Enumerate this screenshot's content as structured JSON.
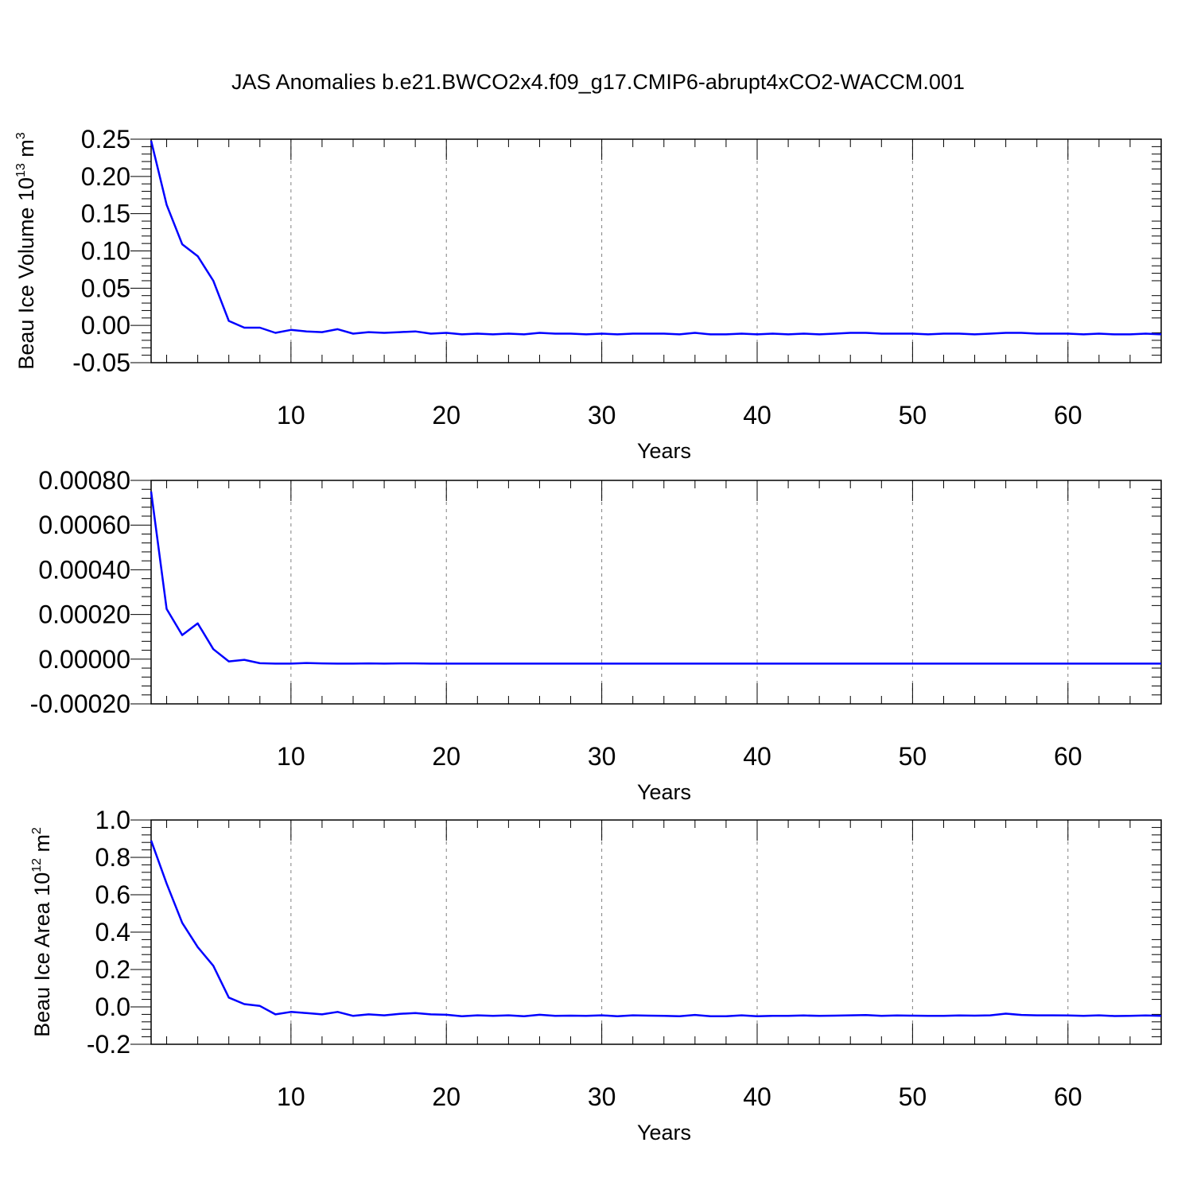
{
  "title": "JAS Anomalies b.e21.BWCO2x4.f09_g17.CMIP6-abrupt4xCO2-WACCM.001",
  "colors": {
    "line": "#0000ff",
    "axis": "#000000",
    "grid": "#808080"
  },
  "chart_data": [
    {
      "type": "line",
      "name": "volume",
      "xlabel": "Years",
      "ylabel_main": "Beau Ice Volume 10",
      "ylabel_sup": "13",
      "ylabel_unit": " m",
      "ylabel_unit_sup": "3",
      "xlim": [
        1,
        66
      ],
      "ylim": [
        -0.05,
        0.25
      ],
      "xticks": [
        10,
        20,
        30,
        40,
        50,
        60
      ],
      "xtick_labels": [
        "10",
        "20",
        "30",
        "40",
        "50",
        "60"
      ],
      "yticks": [
        -0.05,
        0.0,
        0.05,
        0.1,
        0.15,
        0.2,
        0.25
      ],
      "ytick_labels": [
        "-0.05",
        "0.00",
        "0.05",
        "0.10",
        "0.15",
        "0.20",
        "0.25"
      ],
      "grid": "x-dashed",
      "series": [
        {
          "name": "Beau Ice Volume",
          "x": [
            1,
            2,
            3,
            4,
            5,
            6,
            7,
            8,
            9,
            10,
            11,
            12,
            13,
            14,
            15,
            16,
            17,
            18,
            19,
            20,
            21,
            22,
            23,
            24,
            25,
            26,
            27,
            28,
            29,
            30,
            31,
            32,
            33,
            34,
            35,
            36,
            37,
            38,
            39,
            40,
            41,
            42,
            43,
            44,
            45,
            46,
            47,
            48,
            49,
            50,
            51,
            52,
            53,
            54,
            55,
            56,
            57,
            58,
            59,
            60,
            61,
            62,
            63,
            64,
            65,
            66
          ],
          "values": [
            0.248,
            0.162,
            0.109,
            0.093,
            0.06,
            0.006,
            -0.003,
            -0.003,
            -0.01,
            -0.006,
            -0.008,
            -0.009,
            -0.005,
            -0.011,
            -0.009,
            -0.01,
            -0.009,
            -0.008,
            -0.011,
            -0.01,
            -0.012,
            -0.011,
            -0.012,
            -0.011,
            -0.012,
            -0.01,
            -0.011,
            -0.011,
            -0.012,
            -0.011,
            -0.012,
            -0.011,
            -0.011,
            -0.011,
            -0.012,
            -0.01,
            -0.012,
            -0.012,
            -0.011,
            -0.012,
            -0.011,
            -0.012,
            -0.011,
            -0.012,
            -0.011,
            -0.01,
            -0.01,
            -0.011,
            -0.011,
            -0.011,
            -0.012,
            -0.011,
            -0.011,
            -0.012,
            -0.011,
            -0.01,
            -0.01,
            -0.011,
            -0.011,
            -0.011,
            -0.012,
            -0.011,
            -0.012,
            -0.012,
            -0.011,
            -0.012
          ]
        }
      ]
    },
    {
      "type": "line",
      "name": "middle",
      "xlabel": "Years",
      "ylabel_main": "",
      "ylabel_sup": "",
      "ylabel_unit": "",
      "ylabel_unit_sup": "",
      "xlim": [
        1,
        66
      ],
      "ylim": [
        -0.0002,
        0.0008
      ],
      "xticks": [
        10,
        20,
        30,
        40,
        50,
        60
      ],
      "xtick_labels": [
        "10",
        "20",
        "30",
        "40",
        "50",
        "60"
      ],
      "yticks": [
        -0.0002,
        0.0,
        0.0002,
        0.0004,
        0.0006,
        0.0008
      ],
      "ytick_labels": [
        "-0.00020",
        "0.00000",
        "0.00020",
        "0.00040",
        "0.00060",
        "0.00080"
      ],
      "grid": "x-dashed",
      "series": [
        {
          "name": "series",
          "x": [
            1,
            2,
            3,
            4,
            5,
            6,
            7,
            8,
            9,
            10,
            11,
            12,
            13,
            14,
            15,
            16,
            17,
            18,
            19,
            20,
            21,
            22,
            23,
            24,
            25,
            26,
            27,
            28,
            29,
            30,
            31,
            32,
            33,
            34,
            35,
            36,
            37,
            38,
            39,
            40,
            41,
            42,
            43,
            44,
            45,
            46,
            47,
            48,
            49,
            50,
            51,
            52,
            53,
            54,
            55,
            56,
            57,
            58,
            59,
            60,
            61,
            62,
            63,
            64,
            65,
            66
          ],
          "values": [
            0.00075,
            0.000225,
            0.000108,
            0.00016,
            4.5e-05,
            -1e-05,
            -3e-06,
            -1.8e-05,
            -2e-05,
            -2e-05,
            -1.7e-05,
            -1.9e-05,
            -2e-05,
            -2e-05,
            -1.9e-05,
            -2e-05,
            -1.9e-05,
            -1.9e-05,
            -2e-05,
            -2e-05,
            -2e-05,
            -2e-05,
            -2e-05,
            -2e-05,
            -2e-05,
            -2e-05,
            -2e-05,
            -2e-05,
            -2e-05,
            -2e-05,
            -2e-05,
            -2e-05,
            -2e-05,
            -2e-05,
            -2e-05,
            -2e-05,
            -2e-05,
            -2e-05,
            -2e-05,
            -2e-05,
            -2e-05,
            -2e-05,
            -2e-05,
            -2e-05,
            -2e-05,
            -2e-05,
            -2e-05,
            -2e-05,
            -2e-05,
            -2e-05,
            -2e-05,
            -2e-05,
            -2e-05,
            -2e-05,
            -2e-05,
            -2e-05,
            -2e-05,
            -2e-05,
            -2e-05,
            -2e-05,
            -2e-05,
            -2e-05,
            -2e-05,
            -2e-05,
            -2e-05,
            -2e-05
          ]
        }
      ]
    },
    {
      "type": "line",
      "name": "area",
      "xlabel": "Years",
      "ylabel_main": "Beau Ice Area 10",
      "ylabel_sup": "12",
      "ylabel_unit": " m",
      "ylabel_unit_sup": "2",
      "xlim": [
        1,
        66
      ],
      "ylim": [
        -0.2,
        1.0
      ],
      "xticks": [
        10,
        20,
        30,
        40,
        50,
        60
      ],
      "xtick_labels": [
        "10",
        "20",
        "30",
        "40",
        "50",
        "60"
      ],
      "yticks": [
        -0.2,
        0.0,
        0.2,
        0.4,
        0.6,
        0.8,
        1.0
      ],
      "ytick_labels": [
        "-0.2",
        "0.0",
        "0.2",
        "0.4",
        "0.6",
        "0.8",
        "1.0"
      ],
      "grid": "x-dashed",
      "series": [
        {
          "name": "Beau Ice Area",
          "x": [
            1,
            2,
            3,
            4,
            5,
            6,
            7,
            8,
            9,
            10,
            11,
            12,
            13,
            14,
            15,
            16,
            17,
            18,
            19,
            20,
            21,
            22,
            23,
            24,
            25,
            26,
            27,
            28,
            29,
            30,
            31,
            32,
            33,
            34,
            35,
            36,
            37,
            38,
            39,
            40,
            41,
            42,
            43,
            44,
            45,
            46,
            47,
            48,
            49,
            50,
            51,
            52,
            53,
            54,
            55,
            56,
            57,
            58,
            59,
            60,
            61,
            62,
            63,
            64,
            65,
            66
          ],
          "values": [
            0.89,
            0.66,
            0.45,
            0.32,
            0.22,
            0.05,
            0.015,
            0.005,
            -0.04,
            -0.027,
            -0.033,
            -0.04,
            -0.027,
            -0.048,
            -0.04,
            -0.045,
            -0.037,
            -0.033,
            -0.04,
            -0.042,
            -0.05,
            -0.045,
            -0.048,
            -0.045,
            -0.05,
            -0.042,
            -0.048,
            -0.047,
            -0.048,
            -0.045,
            -0.05,
            -0.045,
            -0.047,
            -0.048,
            -0.05,
            -0.043,
            -0.05,
            -0.05,
            -0.045,
            -0.05,
            -0.048,
            -0.048,
            -0.046,
            -0.048,
            -0.047,
            -0.045,
            -0.044,
            -0.048,
            -0.046,
            -0.047,
            -0.048,
            -0.048,
            -0.046,
            -0.047,
            -0.045,
            -0.036,
            -0.043,
            -0.045,
            -0.045,
            -0.046,
            -0.048,
            -0.045,
            -0.049,
            -0.048,
            -0.046,
            -0.048
          ]
        }
      ]
    }
  ]
}
